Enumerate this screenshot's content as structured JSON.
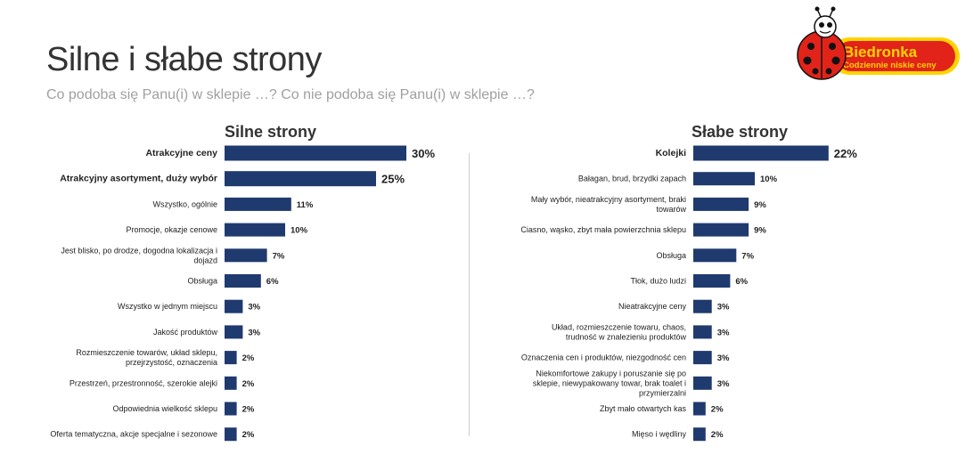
{
  "title": "Silne i słabe strony",
  "subtitle": "Co podoba się Panu(i) w sklepie …?   Co nie podoba się Panu(i) w sklepie …?",
  "logo": {
    "name": "Biedronka",
    "tagline": "Codziennie niskie ceny",
    "colors": {
      "red": "#e2231a",
      "yellow": "#ffd400",
      "black": "#111111"
    }
  },
  "colors": {
    "bar": "#1f3a6e"
  },
  "chart_data": [
    {
      "type": "bar",
      "orientation": "horizontal",
      "title": "Silne strony",
      "categories": [
        "Atrakcyjne ceny",
        "Atrakcyjny asortyment, duży wybór",
        "Wszystko, ogólnie",
        "Promocje, okazje cenowe",
        "Jest blisko, po drodze, dogodna lokalizacja i dojazd",
        "Obsługa",
        "Wszystko w jednym miejscu",
        "Jakość produktów",
        "Rozmieszczenie towarów, układ sklepu, przejrzystość, oznaczenia",
        "Przestrzeń, przestronność, szerokie alejki",
        "Odpowiednia wielkość sklepu",
        "Oferta tematyczna, akcje specjalne i sezonowe"
      ],
      "values": [
        30,
        25,
        11,
        10,
        7,
        6,
        3,
        3,
        2,
        2,
        2,
        2
      ],
      "value_labels": [
        "30%",
        "25%",
        "11%",
        "10%",
        "7%",
        "6%",
        "3%",
        "3%",
        "2%",
        "2%",
        "2%",
        "2%"
      ],
      "unit": "%"
    },
    {
      "type": "bar",
      "orientation": "horizontal",
      "title": "Słabe strony",
      "categories": [
        "Kolejki",
        "Bałagan, brud, brzydki zapach",
        "Mały wybór, nieatrakcyjny asortyment, braki towarów",
        "Ciasno, wąsko, zbyt mała powierzchnia sklepu",
        "Obsługa",
        "Tłok, dużo ludzi",
        "Nieatrakcyjne ceny",
        "Układ, rozmieszczenie towaru, chaos, trudność w znalezieniu produktów",
        "Oznaczenia cen i produktów, niezgodność cen",
        "Niekomfortowe zakupy i poruszanie się po sklepie, niewypakowany towar, brak toalet i przymierzalni",
        "Zbyt mało otwartych kas",
        "Mięso i wędliny"
      ],
      "values": [
        22,
        10,
        9,
        9,
        7,
        6,
        3,
        3,
        3,
        3,
        2,
        2
      ],
      "value_labels": [
        "22%",
        "10%",
        "9%",
        "9%",
        "7%",
        "6%",
        "3%",
        "3%",
        "3%",
        "3%",
        "2%",
        "2%"
      ],
      "unit": "%"
    }
  ]
}
